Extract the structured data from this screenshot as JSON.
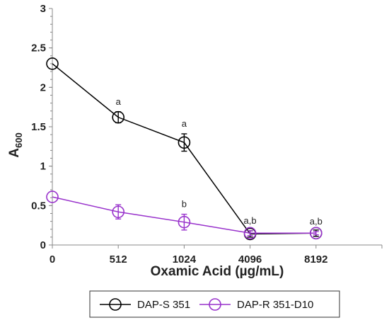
{
  "chart_data": {
    "type": "line",
    "title": "",
    "xlabel": "Oxamic Acid (µg/mL)",
    "ylabel_main": "A",
    "ylabel_sub": "600",
    "categories": [
      "0",
      "512",
      "1024",
      "4096",
      "8192"
    ],
    "ylim": [
      0,
      3
    ],
    "yticks": [
      "0",
      "0.5",
      "1",
      "1.5",
      "2",
      "2.5",
      "3"
    ],
    "grid": false,
    "legend_position": "bottom",
    "series": [
      {
        "name": "DAP-S 351",
        "color": "#000000",
        "values": [
          2.3,
          1.62,
          1.3,
          0.14,
          0.15
        ],
        "errors": [
          0.0,
          0.07,
          0.11,
          0.04,
          0.04
        ],
        "marker": "open-circle"
      },
      {
        "name": "DAP-R 351-D10",
        "color": "#9933cc",
        "values": [
          0.61,
          0.42,
          0.29,
          0.15,
          0.15
        ],
        "errors": [
          0.0,
          0.09,
          0.1,
          0.03,
          0.02
        ],
        "marker": "open-circle"
      }
    ],
    "annotations": [
      {
        "category": "512",
        "text": "a",
        "y": 1.62
      },
      {
        "category": "1024",
        "text": "a",
        "y": 1.3
      },
      {
        "category": "1024",
        "text": "b",
        "y": 0.29
      },
      {
        "category": "4096",
        "text": "a,b",
        "y": 0.15
      },
      {
        "category": "8192",
        "text": "a,b",
        "y": 0.15
      }
    ]
  }
}
